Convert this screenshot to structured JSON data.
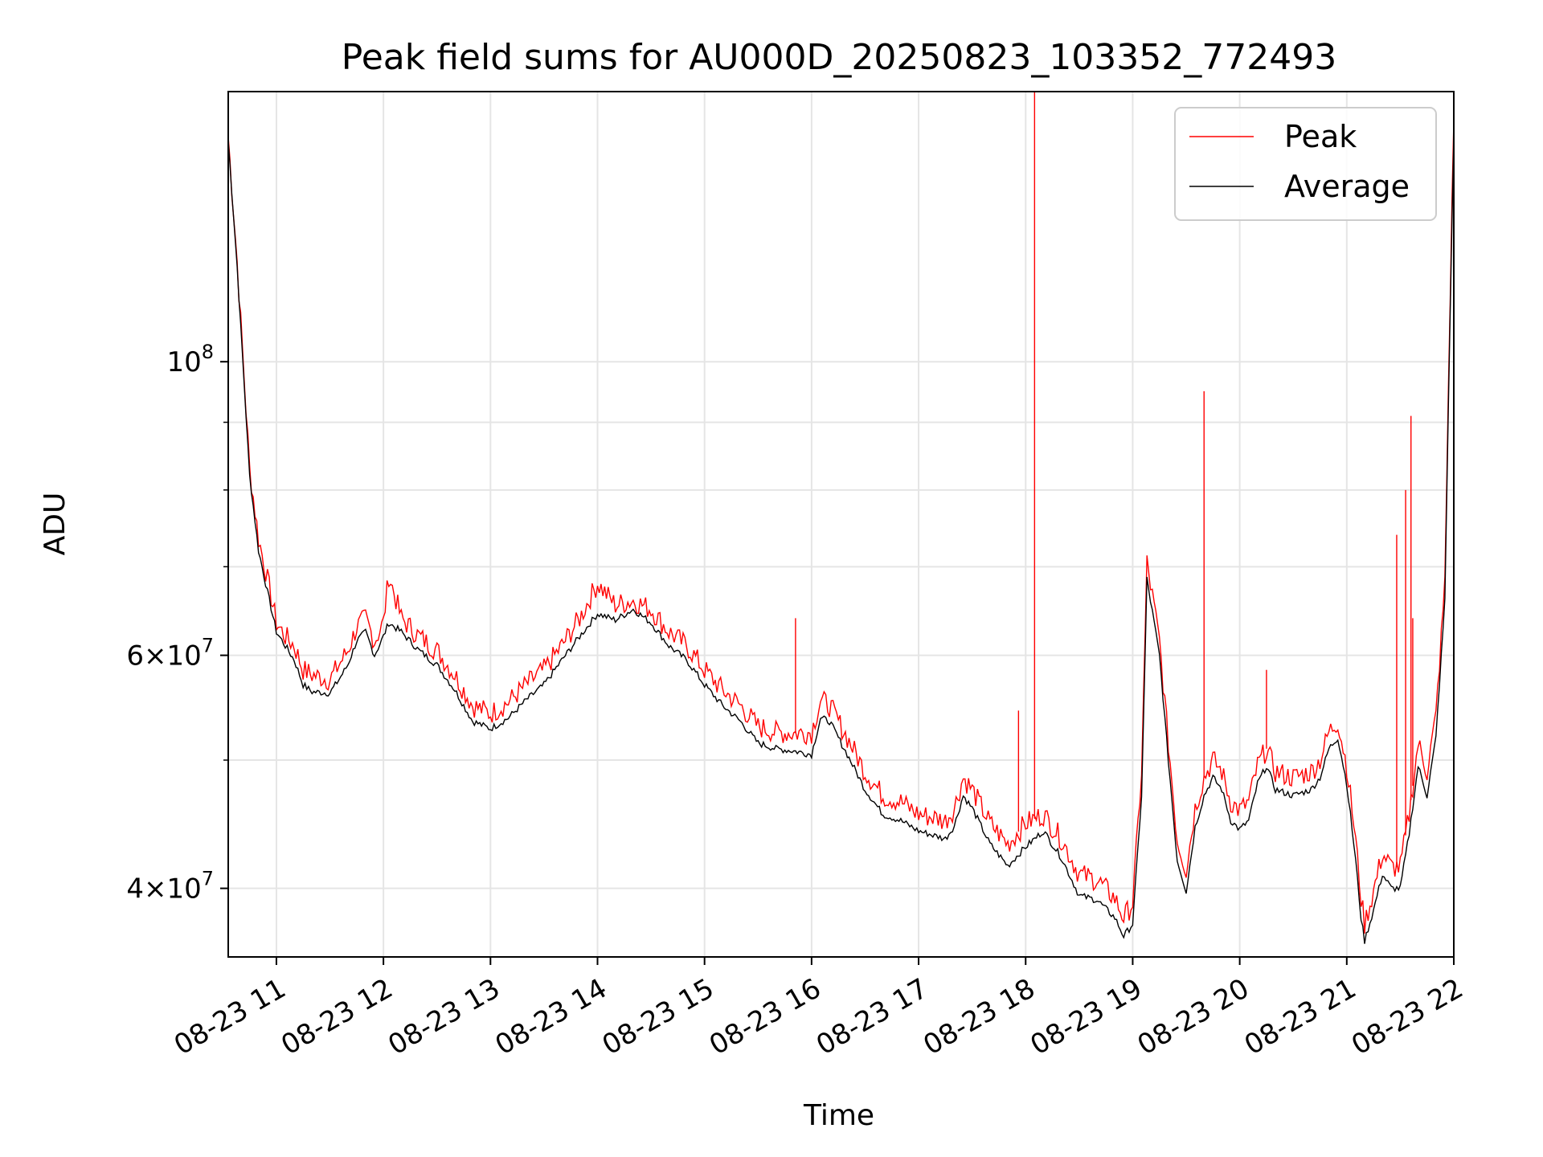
{
  "chart_data": {
    "type": "line",
    "title": "Peak field sums for AU000D_20250823_103352_772493",
    "xlabel": "Time",
    "ylabel": "ADU",
    "yscale": "log",
    "grid": true,
    "legend_position": "top-right",
    "xlim": [
      "08-23 10:33",
      "08-23 22:00"
    ],
    "ylim": [
      35500000,
      160000000
    ],
    "x_ticks": [
      "08-23 11",
      "08-23 12",
      "08-23 13",
      "08-23 14",
      "08-23 15",
      "08-23 16",
      "08-23 17",
      "08-23 18",
      "08-23 19",
      "08-23 20",
      "08-23 21",
      "08-23 22"
    ],
    "y_ticks": [
      {
        "value": 40000000,
        "mantissa": "4",
        "exp": "7"
      },
      {
        "value": 60000000,
        "mantissa": "6",
        "exp": "7"
      },
      {
        "value": 100000000,
        "mantissa": "",
        "exp": "8"
      }
    ],
    "x": [
      "10:33",
      "10:38",
      "10:45",
      "10:50",
      "10:55",
      "11:00",
      "11:05",
      "11:10",
      "11:15",
      "11:20",
      "11:30",
      "11:35",
      "11:40",
      "11:45",
      "11:50",
      "11:55",
      "12:00",
      "12:03",
      "12:10",
      "12:20",
      "12:30",
      "12:40",
      "12:50",
      "13:00",
      "13:10",
      "13:20",
      "13:30",
      "13:40",
      "13:50",
      "14:00",
      "14:10",
      "14:20",
      "14:30",
      "14:40",
      "14:50",
      "15:00",
      "15:10",
      "15:20",
      "15:30",
      "15:40",
      "15:50",
      "16:00",
      "16:05",
      "16:10",
      "16:20",
      "16:30",
      "16:40",
      "16:50",
      "17:00",
      "17:10",
      "17:15",
      "17:20",
      "17:25",
      "17:30",
      "17:40",
      "17:50",
      "18:00",
      "18:10",
      "18:20",
      "18:30",
      "18:40",
      "18:50",
      "18:55",
      "19:00",
      "19:05",
      "19:08",
      "19:15",
      "19:20",
      "19:25",
      "19:30",
      "19:35",
      "19:40",
      "19:45",
      "19:50",
      "19:55",
      "20:00",
      "20:05",
      "20:10",
      "20:15",
      "20:20",
      "20:30",
      "20:40",
      "20:45",
      "20:50",
      "20:55",
      "21:00",
      "21:05",
      "21:08",
      "21:10",
      "21:15",
      "21:20",
      "21:25",
      "21:30",
      "21:35",
      "21:40",
      "21:45",
      "21:50",
      "21:55",
      "21:58",
      "22:00"
    ],
    "series": [
      {
        "name": "Average",
        "color": "#000000",
        "values": [
          147000000,
          118000000,
          82000000,
          72000000,
          67000000,
          62500000,
          61000000,
          59500000,
          57000000,
          56300000,
          56200000,
          57500000,
          59000000,
          61500000,
          62500000,
          60000000,
          62000000,
          63500000,
          62500000,
          60500000,
          59000000,
          56500000,
          53500000,
          52800000,
          53800000,
          55500000,
          57000000,
          59500000,
          62000000,
          64500000,
          63800000,
          65000000,
          63500000,
          61000000,
          59500000,
          57000000,
          55000000,
          53500000,
          51500000,
          51000000,
          50800000,
          50500000,
          53800000,
          53500000,
          50500000,
          47500000,
          45500000,
          45000000,
          44200000,
          43800000,
          43600000,
          44600000,
          47000000,
          46000000,
          43200000,
          41600000,
          43000000,
          44200000,
          42200000,
          39500000,
          39200000,
          38000000,
          36800000,
          37600000,
          47000000,
          68500000,
          60000000,
          50000000,
          42000000,
          39800000,
          44500000,
          47000000,
          48500000,
          47500000,
          45000000,
          44300000,
          45000000,
          48000000,
          49500000,
          47500000,
          47000000,
          47500000,
          48500000,
          51000000,
          52000000,
          48000000,
          42000000,
          38000000,
          36500000,
          38500000,
          41000000,
          40000000,
          40000000,
          44000000,
          49500000,
          47000000,
          52000000,
          66000000,
          110000000,
          148000000
        ]
      },
      {
        "name": "Peak",
        "color": "#ff0000",
        "values": [
          148000000,
          119000000,
          83000000,
          73500000,
          68500000,
          63500000,
          62000000,
          61000000,
          58500000,
          58000000,
          57500000,
          59000000,
          60500000,
          63000000,
          64000000,
          61500000,
          63500000,
          69000000,
          64000000,
          62000000,
          60500000,
          58000000,
          55000000,
          54200000,
          55300000,
          57000000,
          58500000,
          61000000,
          64000000,
          68000000,
          65500000,
          66000000,
          65000000,
          62500000,
          61000000,
          58500000,
          56500000,
          55000000,
          53000000,
          52500000,
          52400000,
          52500000,
          55500000,
          55000000,
          52000000,
          49000000,
          47000000,
          46500000,
          45500000,
          45200000,
          45000000,
          46000000,
          48500000,
          47500000,
          44800000,
          43200000,
          44800000,
          45500000,
          43600000,
          41000000,
          40600000,
          39300000,
          38000000,
          39000000,
          49000000,
          70500000,
          61500000,
          51500000,
          43500000,
          41300000,
          46000000,
          48500000,
          50000000,
          49000000,
          46500000,
          45800000,
          46500000,
          49500000,
          51000000,
          49000000,
          48500000,
          49000000,
          50000000,
          52500000,
          53500000,
          49500000,
          43500000,
          39300000,
          37600000,
          39800000,
          42500000,
          41500000,
          41500000,
          45500000,
          51500000,
          49000000,
          54000000,
          68000000,
          113000000,
          152000000
        ]
      }
    ],
    "peak_spikes": [
      {
        "x": "12:03",
        "y": 69000000
      },
      {
        "x": "15:51",
        "y": 64000000
      },
      {
        "x": "17:56",
        "y": 54500000
      },
      {
        "x": "18:05",
        "y": 160000000
      },
      {
        "x": "19:40",
        "y": 95000000
      },
      {
        "x": "20:15",
        "y": 58500000
      },
      {
        "x": "21:28",
        "y": 74000000
      },
      {
        "x": "21:33",
        "y": 80000000
      },
      {
        "x": "21:36",
        "y": 91000000
      },
      {
        "x": "21:37",
        "y": 64000000
      }
    ]
  }
}
